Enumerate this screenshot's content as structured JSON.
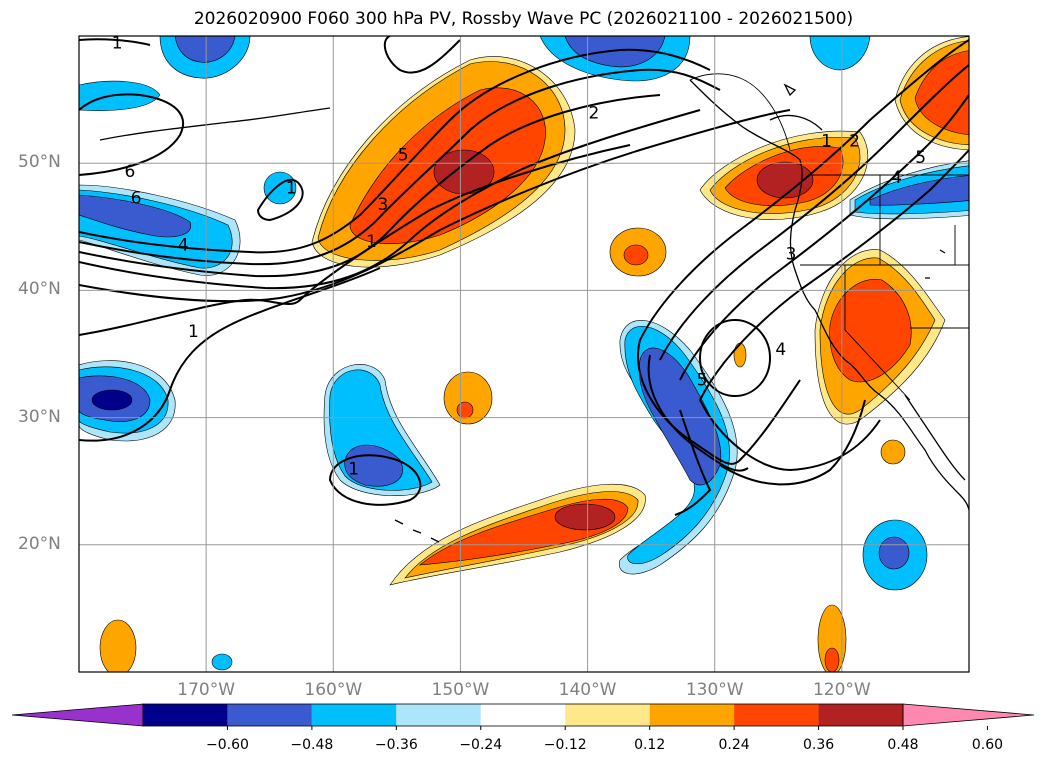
{
  "title": "2026020900 F060 300 hPa PV, Rossby Wave PC (2026021100 - 2026021500)",
  "map": {
    "region": "North-east Pacific Ocean and western North America",
    "lon_range": [
      -180,
      -110
    ],
    "lat_range": [
      10,
      60
    ],
    "gridlines": true,
    "lat_ticks": [
      {
        "value": 50,
        "label": "50°N"
      },
      {
        "value": 40,
        "label": "40°N"
      },
      {
        "value": 30,
        "label": "30°N"
      },
      {
        "value": 20,
        "label": "20°N"
      }
    ],
    "lon_ticks": [
      {
        "value": -170,
        "label": "170°W"
      },
      {
        "value": -160,
        "label": "160°W"
      },
      {
        "value": -150,
        "label": "150°W"
      },
      {
        "value": -140,
        "label": "140°W"
      },
      {
        "value": -130,
        "label": "130°W"
      },
      {
        "value": -120,
        "label": "120°W"
      }
    ],
    "contour_labels": [
      {
        "text": "1",
        "lon": -177.0,
        "lat": 59.5
      },
      {
        "text": "6",
        "lon": -176.0,
        "lat": 49.4
      },
      {
        "text": "6",
        "lon": -175.5,
        "lat": 47.3
      },
      {
        "text": "4",
        "lon": -171.8,
        "lat": 43.6
      },
      {
        "text": "1",
        "lon": -171.0,
        "lat": 36.8
      },
      {
        "text": "1",
        "lon": -163.3,
        "lat": 48.1
      },
      {
        "text": "5",
        "lon": -154.5,
        "lat": 50.7
      },
      {
        "text": "3",
        "lon": -156.1,
        "lat": 46.8
      },
      {
        "text": "1",
        "lon": -157.0,
        "lat": 43.9
      },
      {
        "text": "2",
        "lon": -139.5,
        "lat": 54.0
      },
      {
        "text": "1",
        "lon": -121.2,
        "lat": 51.8
      },
      {
        "text": "2",
        "lon": -119.0,
        "lat": 51.8
      },
      {
        "text": "5",
        "lon": -113.8,
        "lat": 50.5
      },
      {
        "text": "4",
        "lon": -115.7,
        "lat": 48.9
      },
      {
        "text": "3",
        "lon": -124.0,
        "lat": 42.9
      },
      {
        "text": "4",
        "lon": -124.8,
        "lat": 35.4
      },
      {
        "text": "5",
        "lon": -131.0,
        "lat": 33.0
      },
      {
        "text": "1",
        "lon": -158.4,
        "lat": 26.0
      }
    ]
  },
  "colorbar": {
    "colors": [
      "#9932cc",
      "#00008b",
      "#3a5bcf",
      "#00bfff",
      "#ade6fb",
      "#ffffff",
      "#ffe88a",
      "#ffa500",
      "#ff4500",
      "#b22222",
      "#ff88b0"
    ],
    "tick_labels": [
      "−0.60",
      "−0.48",
      "−0.36",
      "−0.24",
      "−0.12",
      "0.12",
      "0.24",
      "0.36",
      "0.48",
      "0.60"
    ]
  }
}
